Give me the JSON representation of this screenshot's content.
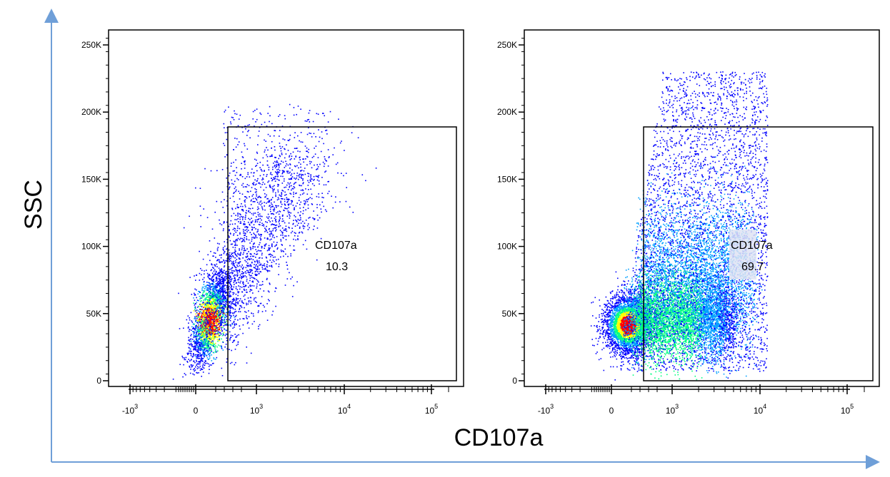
{
  "chart_data": {
    "type": "scatter",
    "description_axes": {
      "xlabel": "CD107a",
      "ylabel": "SSC",
      "arrow_color": "#6f9fd8"
    },
    "density_colors": [
      "#0000ff",
      "#00a0ff",
      "#00ff80",
      "#ffff00",
      "#ff0000"
    ],
    "panels": [
      {
        "name": "left",
        "y_ticks": [
          "0",
          "50K",
          "100K",
          "150K",
          "200K",
          "250K"
        ],
        "y_values": [
          0,
          50000,
          100000,
          150000,
          200000,
          250000
        ],
        "x_tick_bases": [
          "-10",
          "0",
          "10",
          "10",
          "10"
        ],
        "x_tick_exps": [
          "3",
          "",
          "3",
          "4",
          "5"
        ],
        "gate": {
          "name": "CD107a",
          "value": "10.3",
          "x_range": [
            600,
            150000
          ],
          "y_range": [
            0,
            190000
          ]
        },
        "population": "low"
      },
      {
        "name": "right",
        "y_ticks": [
          "0",
          "50K",
          "100K",
          "150K",
          "200K",
          "250K"
        ],
        "y_values": [
          0,
          50000,
          100000,
          150000,
          200000,
          250000
        ],
        "x_tick_bases": [
          "-10",
          "0",
          "10",
          "10",
          "10"
        ],
        "x_tick_exps": [
          "3",
          "",
          "3",
          "4",
          "5"
        ],
        "gate": {
          "name": "CD107a",
          "value": "69.7",
          "x_range": [
            600,
            150000
          ],
          "y_range": [
            0,
            190000
          ]
        },
        "population": "high"
      }
    ]
  }
}
